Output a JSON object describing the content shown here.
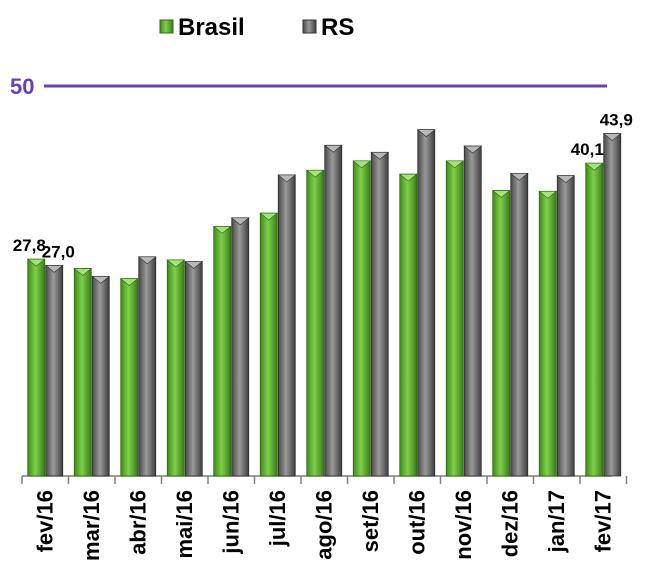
{
  "chart_data": {
    "type": "bar",
    "categories": [
      "fev/16",
      "mar/16",
      "abr/16",
      "mai/16",
      "jun/16",
      "jul/16",
      "ago/16",
      "set/16",
      "out/16",
      "nov/16",
      "dez/16",
      "jan/17",
      "fev/17"
    ],
    "series": [
      {
        "name": "Brasil",
        "color": "#5fae2e",
        "values": [
          27.8,
          26.6,
          25.3,
          27.7,
          32.0,
          33.7,
          39.2,
          40.4,
          38.7,
          40.4,
          36.6,
          36.5,
          40.1
        ]
      },
      {
        "name": "RS",
        "color": "#6a6a6a",
        "values": [
          27.0,
          25.6,
          28.1,
          27.5,
          33.1,
          38.6,
          42.4,
          41.5,
          44.4,
          42.3,
          38.8,
          38.5,
          43.9
        ]
      }
    ],
    "data_labels": [
      {
        "series": 0,
        "index": 0,
        "text": "27,8"
      },
      {
        "series": 1,
        "index": 0,
        "text": "27,0"
      },
      {
        "series": 0,
        "index": 12,
        "text": "40,1"
      },
      {
        "series": 1,
        "index": 12,
        "text": "43,9"
      }
    ],
    "reference_line": {
      "value": 50,
      "label": "50",
      "color": "#6a3fb5"
    },
    "ylim": [
      0,
      50
    ],
    "legend_position": "top-center",
    "grid": false
  }
}
